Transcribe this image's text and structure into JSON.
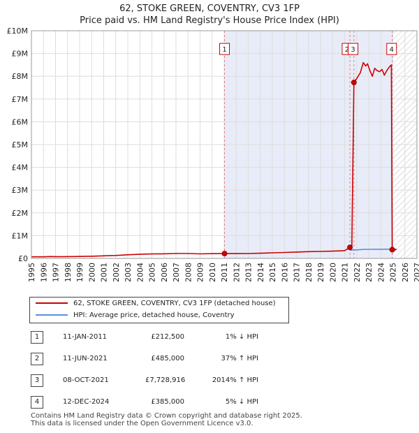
{
  "header": {
    "title": "62, STOKE GREEN, COVENTRY, CV3 1FP",
    "subtitle": "Price paid vs. HM Land Registry's House Price Index (HPI)"
  },
  "chart_data": {
    "type": "line",
    "title": "62, STOKE GREEN, COVENTRY, CV3 1FP",
    "subtitle": "Price paid vs. HM Land Registry's House Price Index (HPI)",
    "xlabel": "",
    "ylabel": "",
    "xlim": [
      1995,
      2027
    ],
    "ylim": [
      0,
      10000000
    ],
    "x_ticks": [
      "1995",
      "1996",
      "1997",
      "1998",
      "1999",
      "2000",
      "2001",
      "2002",
      "2003",
      "2004",
      "2005",
      "2006",
      "2007",
      "2008",
      "2009",
      "2010",
      "2011",
      "2012",
      "2013",
      "2014",
      "2015",
      "2016",
      "2017",
      "2018",
      "2019",
      "2020",
      "2021",
      "2022",
      "2023",
      "2024",
      "2025",
      "2026",
      "2027"
    ],
    "y_ticks": [
      {
        "value": 0,
        "label": "£0"
      },
      {
        "value": 1000000,
        "label": "£1M"
      },
      {
        "value": 2000000,
        "label": "£2M"
      },
      {
        "value": 3000000,
        "label": "£3M"
      },
      {
        "value": 4000000,
        "label": "£4M"
      },
      {
        "value": 5000000,
        "label": "£5M"
      },
      {
        "value": 6000000,
        "label": "£6M"
      },
      {
        "value": 7000000,
        "label": "£7M"
      },
      {
        "value": 8000000,
        "label": "£8M"
      },
      {
        "value": 9000000,
        "label": "£9M"
      },
      {
        "value": 10000000,
        "label": "£10M"
      }
    ],
    "grid": true,
    "shaded_region": [
      2011.03,
      2024.95
    ],
    "future_hatch_start": 2025.0,
    "series": [
      {
        "name": "62, STOKE GREEN, COVENTRY, CV3 1FP (detached house)",
        "color": "#cc0000",
        "points": [
          [
            1995.0,
            70000
          ],
          [
            1996.0,
            71000
          ],
          [
            1996.6,
            82000
          ],
          [
            1997.2,
            75000
          ],
          [
            1998.0,
            79000
          ],
          [
            1999.0,
            85000
          ],
          [
            2000.0,
            96000
          ],
          [
            2001.0,
            112000
          ],
          [
            2002.0,
            130000
          ],
          [
            2003.0,
            158000
          ],
          [
            2004.0,
            182000
          ],
          [
            2005.0,
            195000
          ],
          [
            2006.0,
            203000
          ],
          [
            2007.0,
            214000
          ],
          [
            2008.0,
            214000
          ],
          [
            2009.0,
            198000
          ],
          [
            2010.0,
            208000
          ],
          [
            2011.03,
            212500
          ],
          [
            2012.0,
            212000
          ],
          [
            2013.0,
            216000
          ],
          [
            2014.0,
            227000
          ],
          [
            2015.0,
            244000
          ],
          [
            2016.0,
            262000
          ],
          [
            2017.0,
            280000
          ],
          [
            2018.0,
            298000
          ],
          [
            2019.0,
            308000
          ],
          [
            2020.0,
            318000
          ],
          [
            2021.0,
            340000
          ],
          [
            2021.44,
            485000
          ],
          [
            2021.6,
            505000
          ],
          [
            2021.77,
            7728916
          ],
          [
            2022.0,
            7900000
          ],
          [
            2022.3,
            8150000
          ],
          [
            2022.55,
            8600000
          ],
          [
            2022.75,
            8450000
          ],
          [
            2022.9,
            8550000
          ],
          [
            2023.1,
            8250000
          ],
          [
            2023.3,
            8000000
          ],
          [
            2023.5,
            8350000
          ],
          [
            2023.7,
            8250000
          ],
          [
            2023.9,
            8200000
          ],
          [
            2024.1,
            8300000
          ],
          [
            2024.3,
            8050000
          ],
          [
            2024.5,
            8250000
          ],
          [
            2024.7,
            8400000
          ],
          [
            2024.88,
            8500000
          ],
          [
            2024.95,
            385000
          ],
          [
            2025.1,
            383000
          ],
          [
            2025.3,
            385000
          ]
        ]
      },
      {
        "name": "HPI: Average price, detached house, Coventry",
        "color": "#5b8fd9",
        "points": [
          [
            2021.44,
            360000
          ],
          [
            2022.0,
            375000
          ],
          [
            2022.5,
            392000
          ],
          [
            2023.0,
            400000
          ],
          [
            2023.5,
            403000
          ],
          [
            2024.0,
            402000
          ],
          [
            2024.5,
            405000
          ],
          [
            2024.95,
            405000
          ],
          [
            2025.3,
            408000
          ]
        ]
      }
    ],
    "transactions": [
      {
        "id": "1",
        "x": 2011.03,
        "price": 212500
      },
      {
        "id": "2",
        "x": 2021.44,
        "price": 485000
      },
      {
        "id": "3",
        "x": 2021.77,
        "price": 7728916
      },
      {
        "id": "4",
        "x": 2024.95,
        "price": 385000
      }
    ],
    "marker_boxes": [
      {
        "id": "1",
        "x": 2011.03,
        "y": 9200000
      },
      {
        "id": "2",
        "x": 2021.2,
        "y": 9200000
      },
      {
        "id": "3",
        "x": 2021.7,
        "y": 9200000
      },
      {
        "id": "4",
        "x": 2024.9,
        "y": 9200000
      }
    ]
  },
  "legend": {
    "property_label": "62, STOKE GREEN, COVENTRY, CV3 1FP (detached house)",
    "hpi_label": "HPI: Average price, detached house, Coventry",
    "property_color": "#cc0000",
    "hpi_color": "#5b8fd9"
  },
  "table": {
    "rows": [
      {
        "num": "1",
        "date": "11-JAN-2011",
        "price": "£212,500",
        "hpi": "1% ↓ HPI"
      },
      {
        "num": "2",
        "date": "11-JUN-2021",
        "price": "£485,000",
        "hpi": "37% ↑ HPI"
      },
      {
        "num": "3",
        "date": "08-OCT-2021",
        "price": "£7,728,916",
        "hpi": "2014% ↑ HPI"
      },
      {
        "num": "4",
        "date": "12-DEC-2024",
        "price": "£385,000",
        "hpi": "5% ↓ HPI"
      }
    ]
  },
  "footer": {
    "line1": "Contains HM Land Registry data © Crown copyright and database right 2025.",
    "line2": "This data is licensed under the Open Government Licence v3.0."
  }
}
